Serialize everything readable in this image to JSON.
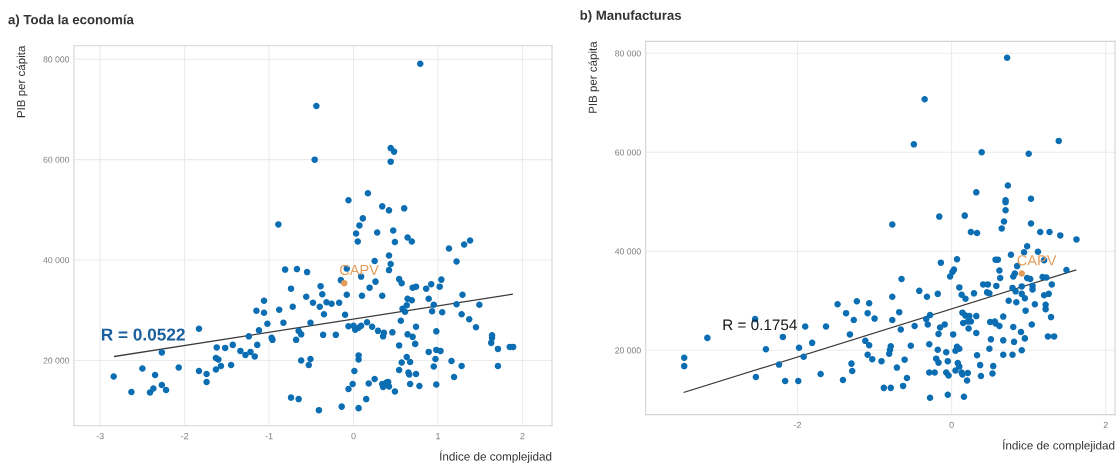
{
  "chart_data": [
    {
      "type": "scatter",
      "title": "a) Toda la economía",
      "xlabel": "Índice de complejidad",
      "ylabel": "PIB per cápita",
      "xlim": [
        -3.31,
        2.35
      ],
      "ylim": [
        7000,
        82700
      ],
      "xticks": [
        -3,
        -2,
        -1,
        0,
        1,
        2
      ],
      "yticks": [
        {
          "value": 20000,
          "label": "20 000"
        },
        {
          "value": 40000,
          "label": "40 000"
        },
        {
          "value": 60000,
          "label": "60 000"
        },
        {
          "value": 80000,
          "label": "80 000"
        }
      ],
      "grid": true,
      "marker": "circle",
      "series": [
        {
          "color": "#0b6db2",
          "x": [
            -2.84,
            -2.63,
            -2.5,
            -2.41,
            -2.37,
            -2.35,
            -2.27,
            -2.22,
            -2.27,
            -2.07,
            -1.83,
            -1.83,
            -1.74,
            -1.74,
            -1.63,
            -1.63,
            -1.6,
            -1.62,
            -1.57,
            -1.52,
            -1.45,
            -1.43,
            -1.34,
            -1.28,
            -1.24,
            -1.22,
            -1.17,
            -1.14,
            -1.12,
            -1.15,
            -1.06,
            -1.06,
            -1.02,
            -0.97,
            -0.96,
            -0.89,
            -0.88,
            -0.83,
            -0.81,
            -0.74,
            -0.72,
            -0.74,
            -0.68,
            -0.67,
            -0.65,
            -0.62,
            -0.65,
            -0.62,
            -0.55,
            -0.56,
            -0.51,
            -0.51,
            -0.53,
            -0.48,
            -0.41,
            -0.4,
            -0.39,
            -0.37,
            -0.35,
            -0.36,
            -0.32,
            -0.26,
            -0.21,
            -0.17,
            -0.15,
            -0.14,
            -0.1,
            -0.08,
            -0.08,
            -0.06,
            -0.06,
            -0.06,
            -0.01,
            0.01,
            0.0,
            0.02,
            0.06,
            0.09,
            0.16,
            0.22,
            0.03,
            0.05,
            0.06,
            0.06,
            0.06,
            0.07,
            0.09,
            0.1,
            0.11,
            0.15,
            0.17,
            0.18,
            0.19,
            0.25,
            0.25,
            0.26,
            0.28,
            0.29,
            0.34,
            0.34,
            0.35,
            0.36,
            0.34,
            0.35,
            0.39,
            0.41,
            0.42,
            0.42,
            0.42,
            0.44,
            0.42,
            0.46,
            0.47,
            0.49,
            0.49,
            0.54,
            0.54,
            0.54,
            0.56,
            0.57,
            0.57,
            0.58,
            0.6,
            0.61,
            0.63,
            0.63,
            0.64,
            0.64,
            0.64,
            0.65,
            0.66,
            0.67,
            0.67,
            0.69,
            0.69,
            0.7,
            0.7,
            0.73,
            0.74,
            0.74,
            0.74,
            0.78,
            0.79,
            0.86,
            0.89,
            0.89,
            0.92,
            0.93,
            0.95,
            0.95,
            0.97,
            0.98,
            0.98,
            0.98,
            1.02,
            1.03,
            1.04,
            1.05,
            1.13,
            1.16,
            1.19,
            1.22,
            1.22,
            1.28,
            1.28,
            1.29,
            1.31,
            1.37,
            1.38,
            1.45,
            1.49,
            1.63,
            1.64,
            1.64,
            1.71,
            1.71,
            1.85,
            1.89,
            -0.44,
            -0.46,
            0.44,
            0.48,
            0.44
          ],
          "values": [
            16800,
            13700,
            18400,
            13600,
            14400,
            17100,
            15100,
            14100,
            21600,
            18600,
            26300,
            17900,
            17300,
            15700,
            18200,
            20500,
            20200,
            22600,
            18900,
            22500,
            19100,
            23100,
            21900,
            21100,
            24800,
            21700,
            20800,
            23100,
            26000,
            29900,
            29500,
            31900,
            27300,
            24500,
            24100,
            47100,
            30100,
            27500,
            38100,
            34300,
            30700,
            12600,
            24100,
            38200,
            25900,
            25200,
            12300,
            20000,
            37600,
            32700,
            27500,
            20300,
            19100,
            31500,
            10100,
            30700,
            34800,
            33200,
            29200,
            25100,
            31600,
            31300,
            25100,
            31500,
            36000,
            10800,
            29100,
            38300,
            33100,
            51900,
            26800,
            14300,
            15300,
            17900,
            26900,
            26100,
            26500,
            26900,
            27600,
            26700,
            45300,
            43700,
            21000,
            20200,
            10500,
            46900,
            36700,
            32900,
            48300,
            12300,
            53300,
            15400,
            34500,
            39800,
            16300,
            35700,
            45500,
            25900,
            50700,
            32900,
            24800,
            25500,
            15300,
            14700,
            15600,
            15700,
            14800,
            49900,
            40900,
            39200,
            38000,
            25600,
            45900,
            43600,
            13800,
            36200,
            23000,
            18100,
            27900,
            35400,
            19600,
            30300,
            50300,
            29700,
            31000,
            20700,
            44500,
            32300,
            25200,
            17600,
            17200,
            19700,
            15300,
            43700,
            32000,
            34500,
            24700,
            23300,
            34700,
            26700,
            17300,
            14900,
            79100,
            34300,
            32300,
            21700,
            35200,
            29800,
            31100,
            18800,
            20300,
            25800,
            22100,
            15200,
            34700,
            21900,
            36100,
            29600,
            42300,
            19900,
            16700,
            39700,
            31200,
            29200,
            18900,
            33100,
            43100,
            28200,
            43900,
            26600,
            31100,
            23500,
            25000,
            24500,
            22300,
            18900,
            22700,
            22700,
            70700,
            60000,
            62300,
            61600,
            59600
          ]
        },
        {
          "name": "CAPV",
          "color": "#e39d5a",
          "x": [
            -0.11
          ],
          "values": [
            35400
          ]
        },
        {
          "type": "line",
          "marker": "none",
          "color": "#3a3a3a",
          "x": [
            -2.83,
            1.88
          ],
          "values": [
            20800,
            33200
          ]
        }
      ],
      "annotations": [
        "R = 0.0522"
      ]
    },
    {
      "type": "scatter",
      "title": "b) Manufacturas",
      "xlabel": "Índice de complejidad",
      "ylabel": "PIB per cápita",
      "xlim": [
        -3.97,
        2.12
      ],
      "ylim": [
        7000,
        82400
      ],
      "xticks": [
        -2,
        0,
        2
      ],
      "yticks": [
        {
          "value": 20000,
          "label": "20 000"
        },
        {
          "value": 40000,
          "label": "40 000"
        },
        {
          "value": 60000,
          "label": "60 000"
        },
        {
          "value": 80000,
          "label": "80 000"
        }
      ],
      "grid": true,
      "marker": "circle",
      "series": [
        {
          "color": "#0b6db2",
          "x": [
            -3.47,
            -3.47,
            -3.17,
            -2.55,
            -2.54,
            -2.41,
            -2.24,
            -2.19,
            -2.16,
            -1.99,
            -1.98,
            -1.92,
            -1.9,
            -1.81,
            -1.7,
            -1.63,
            -1.48,
            -0.65,
            -0.42,
            -0.77,
            -1.23,
            -1.07,
            -0.32,
            -0.18,
            0.1,
            0.13,
            0.18,
            0.29,
            0.41,
            0.47,
            0.58,
            0.46,
            0.49,
            -1.37,
            -1.09,
            -0.68,
            -1.0,
            -0.77,
            -1.27,
            -0.33,
            -0.28,
            0.14,
            0.18,
            0.23,
            0.32,
            0.67,
            -0.31,
            -0.09,
            -0.15,
            -0.66,
            -0.48,
            0.15,
            0.21,
            0.25,
            0.22,
            0.5,
            0.56,
            0.57,
            0.62,
            0.8,
            1.04,
            1.29,
            -1.32,
            -1.12,
            -1.07,
            -0.17,
            0.02,
            0.32,
            0.9,
            0.95,
            0.51,
            0.67,
            0.81,
            1.25,
            1.33,
            -0.79,
            -0.8,
            -0.53,
            -0.29,
            -0.18,
            -0.07,
            0.07,
            0.1,
            0.05,
            0.33,
            0.49,
            0.67,
            0.79,
            0.91,
            -1.09,
            -1.03,
            -0.91,
            -0.81,
            -1.3,
            -1.29,
            -0.61,
            -0.71,
            -0.2,
            -0.17,
            -0.05,
            0.08,
            0.1,
            0.37,
            0.54,
            -1.41,
            -0.58,
            -0.29,
            -0.22,
            -0.07,
            -0.04,
            0.05,
            0.13,
            0.14,
            0.21,
            0.2,
            0.38,
            0.53,
            -0.88,
            -0.79,
            -0.63,
            -0.28,
            -0.05,
            0.16,
            0.98,
            0.94,
            1.12,
            1.2,
            0.77,
            0.57,
            0.6,
            0.07,
            -0.14,
            0.85,
            0.62,
            0.03,
            0.01,
            -0.02,
            0.82,
            0.8,
            0.63,
            0.98,
            1.02,
            1.18,
            1.23,
            1.49,
            1.3,
            1.05,
            1.05,
            0.79,
            0.83,
            0.91,
            0.91,
            0.95,
            1.2,
            1.26,
            1.22,
            1.22,
            1.08,
            0.74,
            0.84,
            0.96,
            0.72,
            -0.35,
            -0.49,
            0.39,
            1.0,
            1.39,
            0.73,
            0.32,
            0.7,
            0.7,
            1.03,
            0.7,
            -0.16,
            0.17,
            -0.77,
            0.68,
            1.03,
            0.65,
            0.25,
            0.33,
            1.15,
            1.27,
            1.41,
            1.62
          ],
          "values": [
            18500,
            16800,
            22500,
            26300,
            14600,
            20200,
            17100,
            22700,
            13800,
            13800,
            20500,
            18700,
            24800,
            21500,
            15200,
            24800,
            29300,
            34400,
            32000,
            30800,
            29900,
            29500,
            30800,
            31400,
            32700,
            31200,
            30400,
            31500,
            33300,
            33300,
            33000,
            31700,
            31500,
            27500,
            27500,
            27700,
            26400,
            26100,
            26100,
            26300,
            27100,
            27600,
            27000,
            26900,
            26900,
            26800,
            25200,
            25200,
            24600,
            24200,
            24900,
            25500,
            25800,
            25800,
            24400,
            25700,
            25800,
            25400,
            24900,
            24700,
            25200,
            26700,
            23200,
            21900,
            21000,
            23300,
            23200,
            23500,
            23700,
            22400,
            22200,
            22000,
            21700,
            22800,
            22800,
            20800,
            20100,
            20900,
            21200,
            20100,
            19600,
            20700,
            20300,
            19900,
            19000,
            20300,
            19100,
            19100,
            20000,
            19100,
            18200,
            17800,
            19300,
            17300,
            15800,
            18100,
            16500,
            18300,
            17500,
            17800,
            17400,
            16700,
            17000,
            16800,
            14000,
            14400,
            15500,
            15500,
            15500,
            14900,
            15900,
            15500,
            15100,
            15400,
            13900,
            14800,
            15300,
            12400,
            12400,
            12800,
            10400,
            11000,
            10600,
            41000,
            39800,
            39900,
            38200,
            39300,
            38300,
            38300,
            38400,
            37700,
            37000,
            36100,
            36300,
            35800,
            34900,
            35500,
            34900,
            34600,
            34600,
            34400,
            34800,
            34700,
            36200,
            33300,
            33000,
            32300,
            32600,
            31900,
            31400,
            32900,
            30500,
            31100,
            31400,
            29200,
            28300,
            29300,
            30000,
            29700,
            28000,
            79100,
            70700,
            61600,
            60000,
            59700,
            62300,
            53300,
            51900,
            50300,
            49900,
            50600,
            48300,
            47000,
            47200,
            45400,
            46000,
            45600,
            44600,
            43900,
            43700,
            43900,
            43900,
            43200,
            42400
          ]
        },
        {
          "name": "CAPV",
          "color": "#e39d5a",
          "x": [
            0.91
          ],
          "values": [
            35500
          ]
        },
        {
          "type": "line",
          "marker": "none",
          "color": "#3a3a3a",
          "x": [
            -3.47,
            1.61
          ],
          "values": [
            11500,
            36200
          ]
        }
      ],
      "annotations": [
        "R = 0.1754"
      ]
    }
  ]
}
